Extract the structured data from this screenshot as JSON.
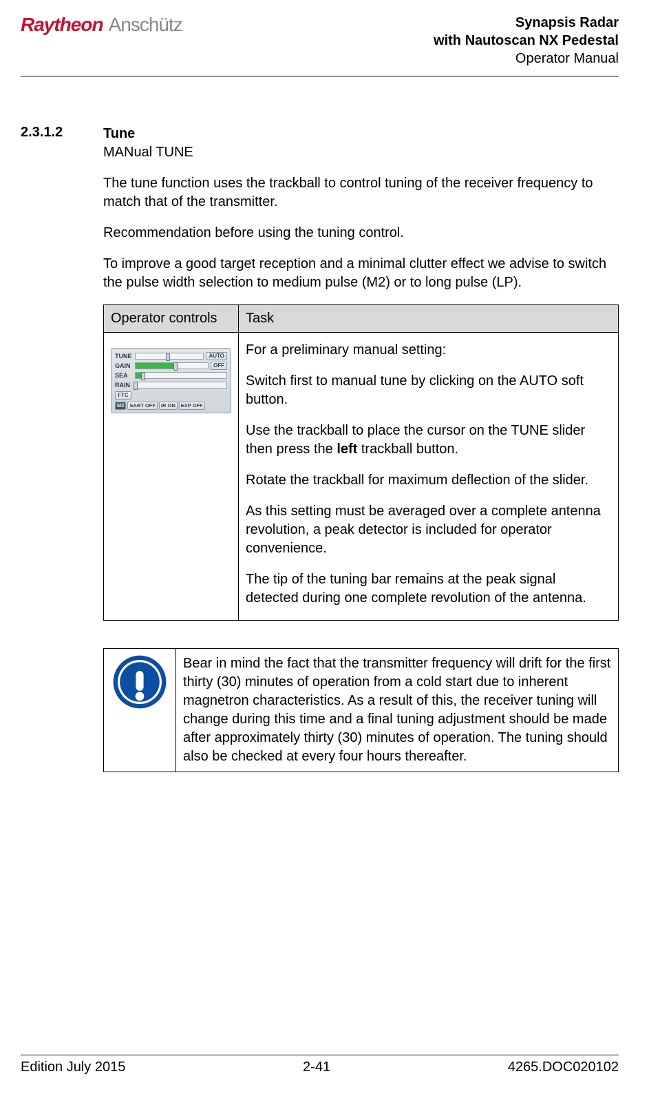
{
  "header": {
    "logo_raytheon": "Raytheon",
    "logo_anschutz": "Anschütz",
    "title1": "Synapsis Radar",
    "title2": "with Nautoscan NX Pedestal",
    "title3": "Operator Manual"
  },
  "section": {
    "number": "2.3.1.2",
    "title": "Tune",
    "subtitle": "MANual TUNE",
    "p1": "The tune function uses the trackball to control tuning of the receiver frequency to match that of the transmitter.",
    "p2": "Recommendation before using the tuning control.",
    "p3": "To improve a good target reception and a minimal clutter effect we advise to switch the pulse width selection to medium pulse (M2) or to long pulse (LP)."
  },
  "table": {
    "col1": "Operator controls",
    "col2": "Task",
    "task": {
      "p1": "For a preliminary manual setting:",
      "p2": "Switch first to manual tune by clicking on the AUTO soft button.",
      "p3a": "Use the trackball to place the cursor on the TUNE slider then press the ",
      "p3b": "left",
      "p3c": " trackball button.",
      "p4": "Rotate the trackball for maximum deflection of the slider.",
      "p5": "As this setting must be averaged over a complete antenna revolution, a peak detector is included for operator convenience.",
      "p6": "The tip of the tuning bar remains at the peak signal detected during one complete revolution of the antenna."
    }
  },
  "control_panel": {
    "rows": [
      {
        "label": "TUNE",
        "fill_pct": 0,
        "handle_pct": 48,
        "btn": "AUTO",
        "btn_dark": false
      },
      {
        "label": "GAIN",
        "fill_pct": 55,
        "handle_pct": 55,
        "btn": "OFF",
        "btn_dark": false
      },
      {
        "label": "SEA",
        "fill_pct": 8,
        "handle_pct": 8,
        "btn": "",
        "btn_dark": false
      },
      {
        "label": "RAIN",
        "fill_pct": 0,
        "handle_pct": 0,
        "btn": "",
        "btn_dark": false
      },
      {
        "label": "FTC",
        "fill_pct": 0,
        "handle_pct": -1,
        "btn": "",
        "btn_dark": false
      }
    ],
    "bottom_buttons": [
      {
        "label": "M2",
        "dark": true
      },
      {
        "label": "SART OFF",
        "dark": false
      },
      {
        "label": "IR ON",
        "dark": false
      },
      {
        "label": "EXP OFF",
        "dark": false
      }
    ],
    "colors": {
      "panel_bg_top": "#e2e6ea",
      "panel_bg_bottom": "#cfd6dc",
      "fill": "#3ab54a",
      "track_bg": "#f2f4f6",
      "border": "#9aa0a6"
    }
  },
  "notice": {
    "icon_color": "#0b4ea2",
    "text": "Bear in mind the fact that the transmitter frequency will drift for the first thirty (30) minutes of operation from a cold start due to inherent magnetron characteristics. As a result of this, the receiver tuning will change during this time and a final tuning adjustment should be made after approximately thirty (30) minutes of operation. The tuning should also be checked at every four hours thereafter."
  },
  "footer": {
    "left": "Edition July 2015",
    "center": "2-41",
    "right": "4265.DOC020102"
  }
}
